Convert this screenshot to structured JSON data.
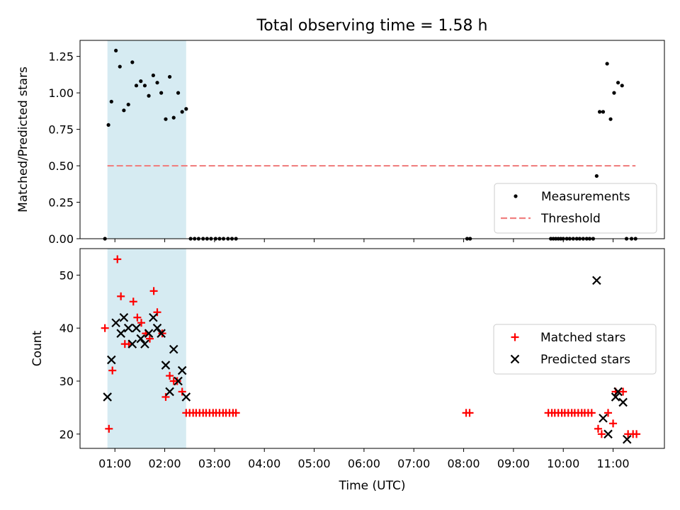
{
  "figure": {
    "title": "Total observing time = 1.58 h"
  },
  "chart_data": [
    {
      "type": "scatter",
      "ylabel": "Matched/Predicted stars",
      "ylim": [
        0,
        1.36
      ],
      "xlim": [
        0.3,
        12.03
      ],
      "yticks": [
        0,
        0.25,
        0.5,
        0.75,
        1.0,
        1.25
      ],
      "ytick_labels": [
        "0.00",
        "0.25",
        "0.50",
        "0.75",
        "1.00",
        "1.25"
      ],
      "shade_region": [
        0.85,
        2.43
      ],
      "legend_position": "lower right",
      "series": [
        {
          "name": "Measurements",
          "marker": "dot",
          "color": "#000000",
          "x": [
            0.8,
            0.87,
            0.93,
            1.02,
            1.1,
            1.18,
            1.27,
            1.35,
            1.43,
            1.52,
            1.6,
            1.68,
            1.77,
            1.85,
            1.93,
            2.02,
            2.1,
            2.18,
            2.27,
            2.35,
            2.43,
            2.52,
            2.6,
            2.68,
            2.77,
            2.85,
            2.93,
            3.02,
            3.1,
            3.18,
            3.27,
            3.35,
            3.43,
            8.07,
            8.13,
            9.75,
            9.8,
            9.85,
            9.9,
            9.95,
            10.0,
            10.07,
            10.13,
            10.2,
            10.27,
            10.33,
            10.4,
            10.47,
            10.53,
            10.6,
            10.67,
            10.73,
            10.8,
            10.88,
            10.95,
            11.02,
            11.1,
            11.18,
            11.27,
            11.37,
            11.45
          ],
          "y": [
            0,
            0.78,
            0.94,
            1.29,
            1.18,
            0.88,
            0.92,
            1.21,
            1.05,
            1.08,
            1.05,
            0.98,
            1.12,
            1.07,
            1.0,
            0.82,
            1.11,
            0.83,
            1.0,
            0.87,
            0.89,
            0,
            0,
            0,
            0,
            0,
            0,
            0,
            0,
            0,
            0,
            0,
            0,
            0,
            0,
            0,
            0,
            0,
            0,
            0,
            0,
            0,
            0,
            0,
            0,
            0,
            0,
            0,
            0,
            0,
            0.43,
            0.87,
            0.87,
            1.2,
            0.82,
            1.0,
            1.07,
            1.05,
            0,
            0,
            0
          ]
        },
        {
          "name": "Threshold",
          "marker": "dashed-line",
          "color": "#f08080",
          "x": [
            0.85,
            11.45
          ],
          "y": [
            0.5,
            0.5
          ]
        }
      ]
    },
    {
      "type": "scatter",
      "xlabel": "Time (UTC)",
      "ylabel": "Count",
      "ylim": [
        17.3,
        55.0
      ],
      "xlim": [
        0.3,
        12.03
      ],
      "yticks": [
        20,
        30,
        40,
        50
      ],
      "ytick_labels": [
        "20",
        "30",
        "40",
        "50"
      ],
      "xticks": [
        1,
        2,
        3,
        4,
        5,
        6,
        7,
        8,
        9,
        10,
        11
      ],
      "xtick_labels": [
        "01:00",
        "02:00",
        "03:00",
        "04:00",
        "05:00",
        "06:00",
        "07:00",
        "08:00",
        "09:00",
        "10:00",
        "11:00"
      ],
      "shade_region": [
        0.85,
        2.43
      ],
      "legend_position": "center right",
      "series": [
        {
          "name": "Matched stars",
          "marker": "plus",
          "color": "#ff0000",
          "x": [
            0.8,
            0.88,
            0.95,
            1.05,
            1.12,
            1.2,
            1.28,
            1.37,
            1.45,
            1.53,
            1.62,
            1.7,
            1.78,
            1.85,
            1.95,
            2.02,
            2.1,
            2.18,
            2.25,
            2.35,
            2.43,
            2.5,
            2.57,
            2.63,
            2.7,
            2.77,
            2.83,
            2.9,
            2.97,
            3.03,
            3.1,
            3.17,
            3.23,
            3.3,
            3.37,
            3.43,
            8.05,
            8.12,
            9.7,
            9.77,
            9.83,
            9.9,
            9.97,
            10.03,
            10.1,
            10.17,
            10.23,
            10.3,
            10.37,
            10.43,
            10.5,
            10.57,
            10.7,
            10.77,
            10.9,
            11.0,
            11.05,
            11.2,
            11.3,
            11.4,
            11.47
          ],
          "y": [
            40,
            21,
            32,
            53,
            46,
            37,
            37,
            45,
            42,
            41,
            39,
            38,
            47,
            43,
            39,
            27,
            31,
            30,
            30,
            28,
            24,
            24,
            24,
            24,
            24,
            24,
            24,
            24,
            24,
            24,
            24,
            24,
            24,
            24,
            24,
            24,
            24,
            24,
            24,
            24,
            24,
            24,
            24,
            24,
            24,
            24,
            24,
            24,
            24,
            24,
            24,
            24,
            21,
            20,
            24,
            22,
            28,
            28,
            20,
            20,
            20
          ]
        },
        {
          "name": "Predicted stars",
          "marker": "x",
          "color": "#000000",
          "x": [
            0.85,
            0.93,
            1.02,
            1.12,
            1.18,
            1.27,
            1.35,
            1.43,
            1.52,
            1.6,
            1.68,
            1.77,
            1.85,
            1.93,
            2.02,
            2.1,
            2.18,
            2.27,
            2.35,
            2.43,
            10.67,
            10.8,
            10.9,
            11.05,
            11.1,
            11.2,
            11.28
          ],
          "y": [
            27,
            34,
            41,
            39,
            42,
            40,
            37,
            40,
            38,
            37,
            39,
            42,
            40,
            39,
            33,
            28,
            36,
            30,
            32,
            27,
            49,
            23,
            20,
            27,
            28,
            26,
            19
          ]
        }
      ]
    }
  ]
}
